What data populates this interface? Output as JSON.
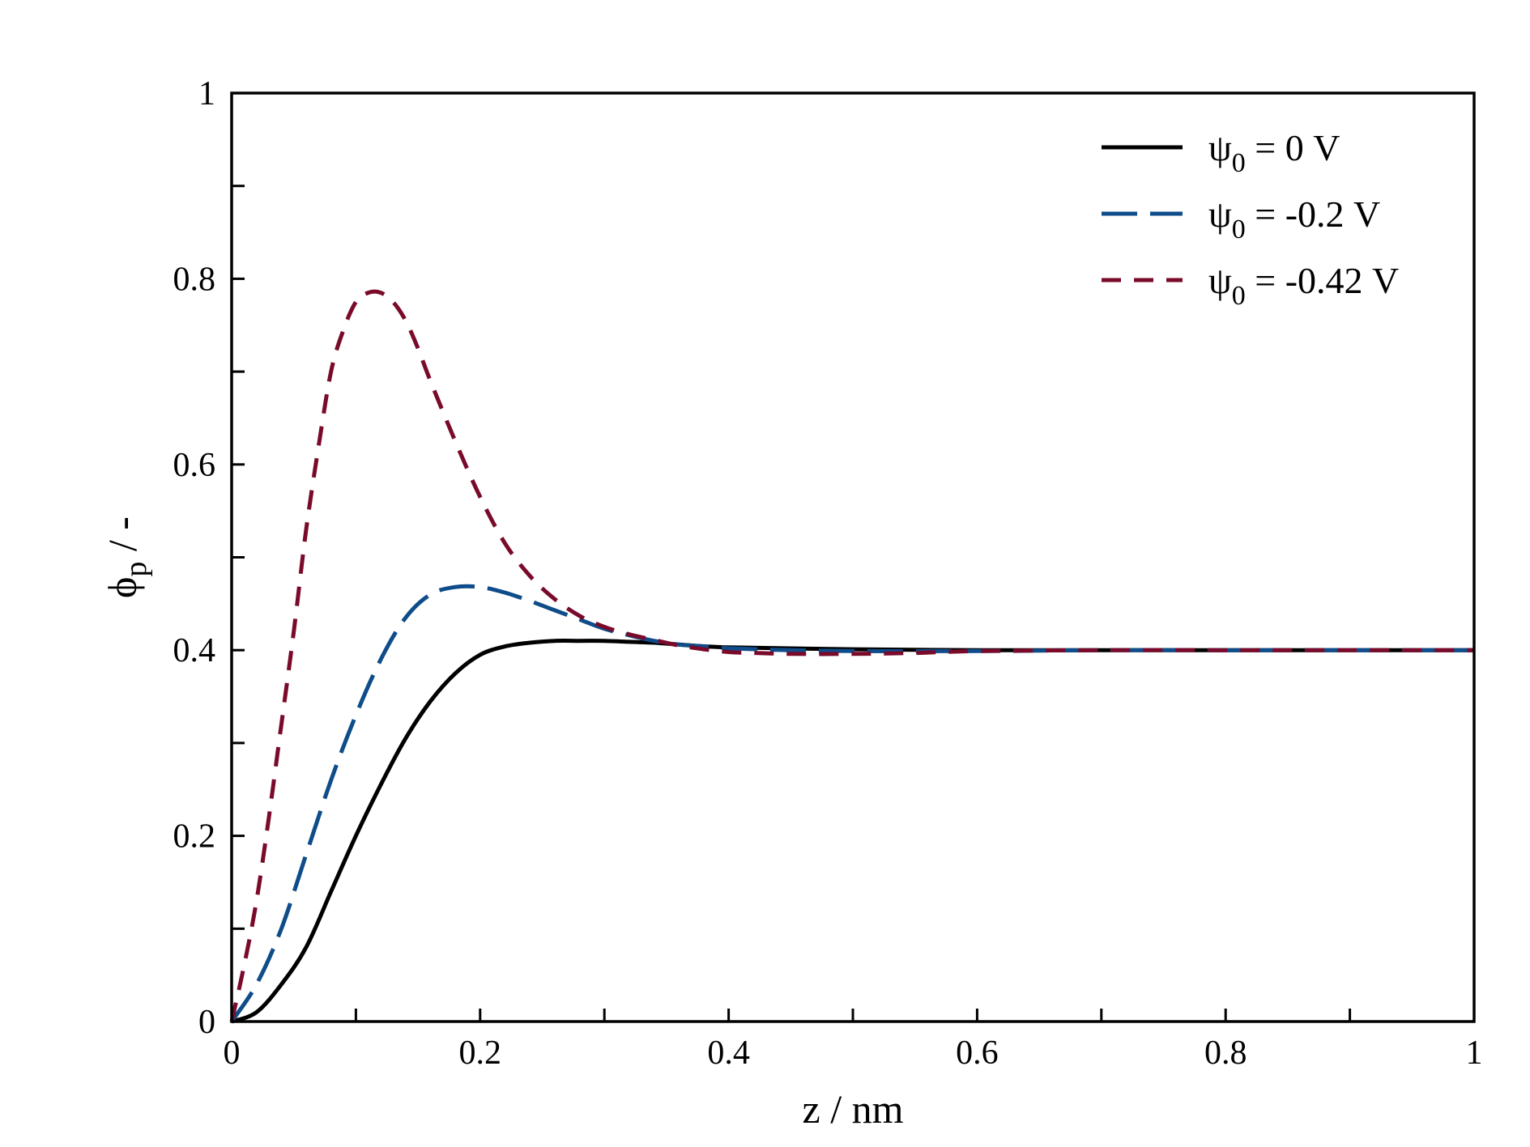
{
  "chart_data": {
    "type": "line",
    "xlabel": "z / nm",
    "ylabel": "ϕp / -",
    "ylabel_parts": {
      "symbol": "ϕ",
      "subscript": "p",
      "suffix": " / -"
    },
    "xlim": [
      0,
      1
    ],
    "ylim": [
      0,
      1
    ],
    "xticks": [
      0,
      0.2,
      0.4,
      0.6,
      0.8,
      1
    ],
    "xtick_labels": [
      "0",
      "0.2",
      "0.4",
      "0.6",
      "0.8",
      "1"
    ],
    "xticks_minor": [
      0.1,
      0.3,
      0.5,
      0.7,
      0.9
    ],
    "yticks": [
      0,
      0.2,
      0.4,
      0.6,
      0.8,
      1
    ],
    "ytick_labels": [
      "0",
      "0.2",
      "0.4",
      "0.6",
      "0.8",
      "1"
    ],
    "yticks_minor": [
      0.1,
      0.3,
      0.5,
      0.7,
      0.9
    ],
    "grid": false,
    "legend_position": "top-right",
    "series": [
      {
        "name": "ψ0 = 0 V",
        "legend_parts": {
          "symbol": "ψ",
          "subscript": "0",
          "text": " = 0 V"
        },
        "color": "#000000",
        "dash": "solid",
        "x": [
          0,
          0.02,
          0.04,
          0.06,
          0.08,
          0.1,
          0.12,
          0.14,
          0.16,
          0.18,
          0.2,
          0.22,
          0.24,
          0.26,
          0.28,
          0.3,
          0.32,
          0.34,
          0.36,
          0.4,
          0.5,
          0.6,
          0.7,
          0.8,
          0.9,
          1.0
        ],
        "y": [
          0,
          0.01,
          0.04,
          0.08,
          0.14,
          0.2,
          0.255,
          0.305,
          0.345,
          0.375,
          0.395,
          0.404,
          0.408,
          0.41,
          0.41,
          0.41,
          0.409,
          0.408,
          0.406,
          0.403,
          0.401,
          0.4,
          0.4,
          0.4,
          0.4,
          0.4
        ]
      },
      {
        "name": "ψ0 = -0.2 V",
        "legend_parts": {
          "symbol": "ψ",
          "subscript": "0",
          "text": " = -0.2 V"
        },
        "color": "#0e4c8a",
        "dash": "long-dash",
        "x": [
          0,
          0.02,
          0.04,
          0.06,
          0.08,
          0.1,
          0.12,
          0.14,
          0.16,
          0.18,
          0.2,
          0.22,
          0.24,
          0.26,
          0.28,
          0.3,
          0.32,
          0.34,
          0.36,
          0.38,
          0.4,
          0.45,
          0.5,
          0.6,
          0.7,
          0.8,
          0.9,
          1.0
        ],
        "y": [
          0,
          0.04,
          0.1,
          0.18,
          0.26,
          0.33,
          0.39,
          0.435,
          0.46,
          0.468,
          0.468,
          0.462,
          0.453,
          0.443,
          0.433,
          0.423,
          0.416,
          0.41,
          0.406,
          0.404,
          0.402,
          0.4,
          0.399,
          0.399,
          0.4,
          0.4,
          0.4,
          0.4
        ]
      },
      {
        "name": "ψ0 = -0.42 V",
        "legend_parts": {
          "symbol": "ψ",
          "subscript": "0",
          "text": " = -0.42 V"
        },
        "color": "#7a0a2a",
        "dash": "dash",
        "x": [
          0,
          0.01,
          0.02,
          0.03,
          0.04,
          0.05,
          0.06,
          0.07,
          0.08,
          0.09,
          0.1,
          0.11,
          0.12,
          0.13,
          0.14,
          0.15,
          0.16,
          0.18,
          0.2,
          0.22,
          0.24,
          0.26,
          0.28,
          0.3,
          0.32,
          0.34,
          0.36,
          0.38,
          0.4,
          0.42,
          0.45,
          0.5,
          0.55,
          0.6,
          0.7,
          0.8,
          0.9,
          1.0
        ],
        "y": [
          0,
          0.06,
          0.13,
          0.22,
          0.32,
          0.42,
          0.53,
          0.62,
          0.7,
          0.745,
          0.775,
          0.785,
          0.785,
          0.775,
          0.755,
          0.725,
          0.69,
          0.625,
          0.565,
          0.515,
          0.48,
          0.455,
          0.437,
          0.425,
          0.417,
          0.411,
          0.405,
          0.401,
          0.398,
          0.397,
          0.396,
          0.396,
          0.397,
          0.399,
          0.4,
          0.4,
          0.4,
          0.4
        ]
      }
    ]
  }
}
